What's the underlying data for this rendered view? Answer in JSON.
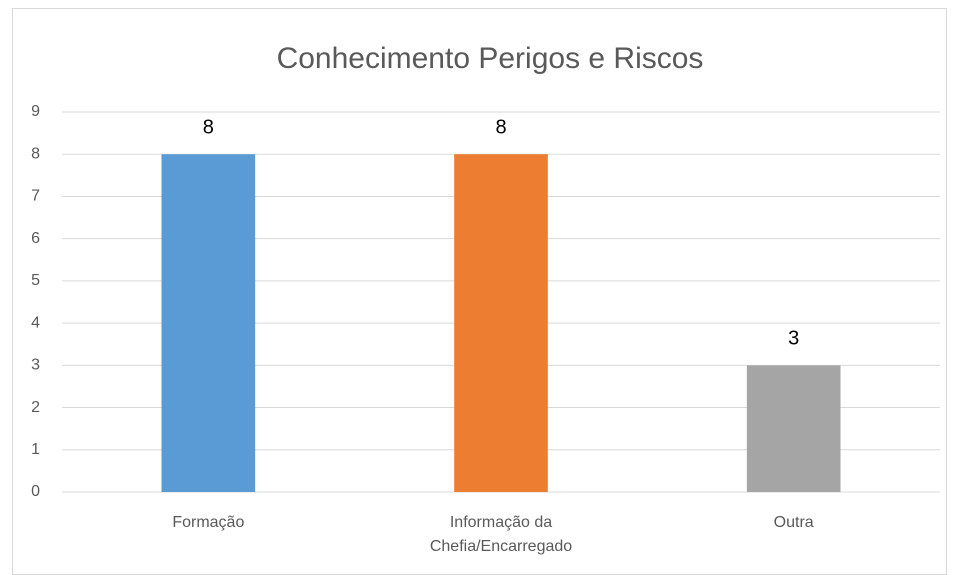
{
  "chart_data": {
    "type": "bar",
    "title": "Conhecimento Perigos e Riscos",
    "categories": [
      "Formação",
      "Informação da Chefia/Encarregado",
      "Outra"
    ],
    "values": [
      8,
      8,
      3
    ],
    "colors": [
      "#5b9bd5",
      "#ed7d31",
      "#a5a5a5"
    ],
    "ylim": [
      0,
      9
    ],
    "yticks": [
      0,
      1,
      2,
      3,
      4,
      5,
      6,
      7,
      8,
      9
    ],
    "grid": true,
    "data_labels": true
  }
}
